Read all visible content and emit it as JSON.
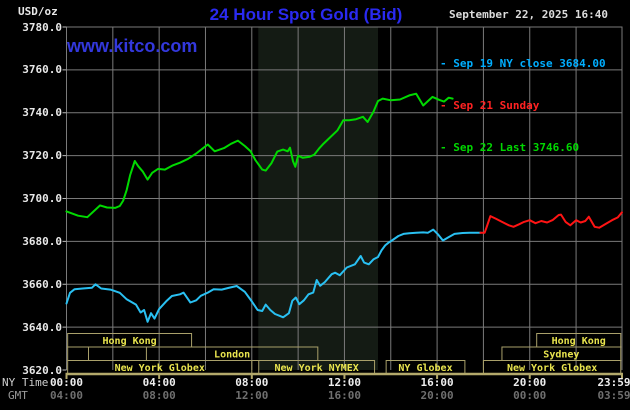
{
  "header": {
    "usd_oz": "USD/oz",
    "title": "24 Hour Spot Gold (Bid)",
    "date": "September 22, 2025 16:40",
    "watermark": "www.kitco.com"
  },
  "legend": [
    {
      "label": "- Sep 19 NY close 3684.00",
      "color": "#00aeff"
    },
    {
      "label": "- Sep 21 Sunday",
      "color": "#ff2222"
    },
    {
      "label": "- Sep 22 Last 3746.60",
      "color": "#00d800"
    }
  ],
  "axes": {
    "ny_time_label": "NY Time",
    "gmt_label": "GMT",
    "y_tick_labels": [
      "3780.0",
      "3760.0",
      "3740.0",
      "3720.0",
      "3700.0",
      "3680.0",
      "3660.0",
      "3640.0",
      "3620.0"
    ],
    "y_tick_values": [
      3780,
      3760,
      3740,
      3720,
      3700,
      3680,
      3660,
      3640,
      3620
    ],
    "x_tick_hours": [
      0,
      4,
      8,
      12,
      16,
      20,
      23.983
    ],
    "x_ny_time": [
      "00:00",
      "04:00",
      "08:00",
      "12:00",
      "16:00",
      "20:00",
      "23:59"
    ],
    "x_gmt": [
      "04:00",
      "08:00",
      "12:00",
      "16:00",
      "20:00",
      "00:00",
      "03:59"
    ]
  },
  "sessions": [
    {
      "row": 0,
      "start": 0.05,
      "end": 5.4,
      "label": "Hong Kong"
    },
    {
      "row": 0,
      "start": 20.3,
      "end": 23.93,
      "label": "Hong Kong"
    },
    {
      "row": 1,
      "start": 0.05,
      "end": 0.95,
      "label": ""
    },
    {
      "row": 1,
      "start": 3.45,
      "end": 10.85,
      "label": "London"
    },
    {
      "row": 1,
      "start": 18.8,
      "end": 23.93,
      "label": "Sydney"
    },
    {
      "row": 2,
      "start": 0.05,
      "end": 8.0,
      "label": "New York Globex"
    },
    {
      "row": 2,
      "start": 8.3,
      "end": 13.3,
      "label": "New York NYMEX"
    },
    {
      "row": 2,
      "start": 13.8,
      "end": 17.2,
      "label": "NY Globex"
    },
    {
      "row": 2,
      "start": 18.0,
      "end": 23.93,
      "label": "New York Globex"
    }
  ],
  "style": {
    "grid_color": "#7a7a7a",
    "band_color": "#141b14",
    "axis_tan": "#b3a96b",
    "session_border": "#a9a06a",
    "session_text": "#e9e44e",
    "tick_stub": "#bbbbbb"
  },
  "chart_data": {
    "type": "line",
    "title": "24 Hour Spot Gold (Bid)",
    "xlabel": "NY Time (hours)",
    "ylabel": "USD/oz",
    "xlim": [
      0,
      23.983
    ],
    "ylim": [
      3620,
      3780
    ],
    "grid": {
      "x_step_hours": 2,
      "y_step": 20
    },
    "nymex_band_hours": [
      8.28,
      13.45
    ],
    "legend_position": "top-right",
    "series": [
      {
        "name": "Sep 19 NY close 3684.00",
        "color": "#29c0f2",
        "points": [
          [
            0,
            3651
          ],
          [
            0.15,
            3656
          ],
          [
            0.35,
            3657.7
          ],
          [
            0.7,
            3658
          ],
          [
            1.1,
            3658.4
          ],
          [
            1.25,
            3660
          ],
          [
            1.5,
            3658
          ],
          [
            1.9,
            3657.5
          ],
          [
            2.3,
            3656
          ],
          [
            2.6,
            3653
          ],
          [
            3.0,
            3650.5
          ],
          [
            3.2,
            3646.8
          ],
          [
            3.35,
            3648
          ],
          [
            3.5,
            3642.5
          ],
          [
            3.65,
            3646.5
          ],
          [
            3.8,
            3644
          ],
          [
            4.0,
            3648.4
          ],
          [
            4.3,
            3652
          ],
          [
            4.55,
            3654.5
          ],
          [
            4.9,
            3655.3
          ],
          [
            5.05,
            3656.1
          ],
          [
            5.35,
            3651.5
          ],
          [
            5.6,
            3652.5
          ],
          [
            5.8,
            3654.6
          ],
          [
            6.1,
            3656.1
          ],
          [
            6.35,
            3657.7
          ],
          [
            6.7,
            3657.5
          ],
          [
            7.0,
            3658.3
          ],
          [
            7.35,
            3659.2
          ],
          [
            7.7,
            3656.5
          ],
          [
            8.0,
            3652
          ],
          [
            8.25,
            3648
          ],
          [
            8.45,
            3647.5
          ],
          [
            8.6,
            3650.5
          ],
          [
            8.8,
            3648
          ],
          [
            9.0,
            3646.1
          ],
          [
            9.2,
            3645.3
          ],
          [
            9.35,
            3644.6
          ],
          [
            9.6,
            3646.5
          ],
          [
            9.75,
            3652.3
          ],
          [
            9.9,
            3653.8
          ],
          [
            10.05,
            3650.7
          ],
          [
            10.25,
            3652.5
          ],
          [
            10.45,
            3655.3
          ],
          [
            10.65,
            3656.1
          ],
          [
            10.8,
            3662
          ],
          [
            10.95,
            3659.3
          ],
          [
            11.15,
            3661
          ],
          [
            11.45,
            3664.7
          ],
          [
            11.6,
            3665.4
          ],
          [
            11.8,
            3664.2
          ],
          [
            12.1,
            3667.8
          ],
          [
            12.45,
            3669.3
          ],
          [
            12.7,
            3673.2
          ],
          [
            12.85,
            3670.1
          ],
          [
            13.05,
            3669.3
          ],
          [
            13.25,
            3671.6
          ],
          [
            13.45,
            3672.7
          ],
          [
            13.6,
            3675.8
          ],
          [
            13.76,
            3678.1
          ],
          [
            13.9,
            3679.4
          ],
          [
            14.05,
            3680.4
          ],
          [
            14.33,
            3682.5
          ],
          [
            14.55,
            3683.5
          ],
          [
            14.8,
            3683.8
          ],
          [
            15.1,
            3684
          ],
          [
            15.4,
            3684.2
          ],
          [
            15.6,
            3684
          ],
          [
            15.83,
            3685.5
          ],
          [
            16.05,
            3683.1
          ],
          [
            16.25,
            3680.4
          ],
          [
            16.5,
            3682
          ],
          [
            16.75,
            3683.5
          ],
          [
            17.1,
            3683.9
          ],
          [
            17.4,
            3684
          ],
          [
            17.87,
            3684
          ]
        ]
      },
      {
        "name": "Sep 21 Sunday",
        "color": "#ff1414",
        "points": [
          [
            17.87,
            3684
          ],
          [
            18.05,
            3684
          ],
          [
            18.15,
            3687
          ],
          [
            18.3,
            3691.8
          ],
          [
            18.55,
            3690.5
          ],
          [
            18.8,
            3689.1
          ],
          [
            19.1,
            3687.5
          ],
          [
            19.3,
            3686.8
          ],
          [
            19.55,
            3688
          ],
          [
            19.75,
            3689.1
          ],
          [
            20.0,
            3689.9
          ],
          [
            20.25,
            3688.5
          ],
          [
            20.5,
            3689.5
          ],
          [
            20.75,
            3688.8
          ],
          [
            21.0,
            3690
          ],
          [
            21.25,
            3692.3
          ],
          [
            21.35,
            3692.5
          ],
          [
            21.55,
            3689.1
          ],
          [
            21.75,
            3687.5
          ],
          [
            22.0,
            3689.9
          ],
          [
            22.2,
            3688.8
          ],
          [
            22.4,
            3689.5
          ],
          [
            22.55,
            3691.5
          ],
          [
            22.8,
            3686.8
          ],
          [
            23.0,
            3686.4
          ],
          [
            23.3,
            3688.3
          ],
          [
            23.55,
            3689.9
          ],
          [
            23.8,
            3691.2
          ],
          [
            23.98,
            3693.5
          ]
        ]
      },
      {
        "name": "Sep 22 Last 3746.60",
        "color": "#00da00",
        "points": [
          [
            0,
            3694
          ],
          [
            0.5,
            3692
          ],
          [
            0.9,
            3691.3
          ],
          [
            1.45,
            3696.8
          ],
          [
            1.75,
            3695.8
          ],
          [
            2.1,
            3695.6
          ],
          [
            2.3,
            3696.5
          ],
          [
            2.45,
            3699
          ],
          [
            2.6,
            3704
          ],
          [
            2.75,
            3711
          ],
          [
            2.95,
            3717.5
          ],
          [
            3.1,
            3715
          ],
          [
            3.3,
            3712.5
          ],
          [
            3.5,
            3708.8
          ],
          [
            3.7,
            3712
          ],
          [
            3.95,
            3713.8
          ],
          [
            4.25,
            3713.5
          ],
          [
            4.6,
            3715.5
          ],
          [
            4.9,
            3716.7
          ],
          [
            5.25,
            3718.5
          ],
          [
            5.6,
            3721
          ],
          [
            5.9,
            3723.5
          ],
          [
            6.1,
            3725.2
          ],
          [
            6.4,
            3722
          ],
          [
            6.8,
            3723.5
          ],
          [
            7.1,
            3725.5
          ],
          [
            7.4,
            3727
          ],
          [
            7.7,
            3724.5
          ],
          [
            7.95,
            3722
          ],
          [
            8.15,
            3718
          ],
          [
            8.45,
            3713.5
          ],
          [
            8.6,
            3713
          ],
          [
            8.85,
            3716.5
          ],
          [
            9.1,
            3721.9
          ],
          [
            9.35,
            3722.8
          ],
          [
            9.55,
            3722
          ],
          [
            9.65,
            3723.7
          ],
          [
            9.78,
            3717.4
          ],
          [
            9.88,
            3714.8
          ],
          [
            10.0,
            3720
          ],
          [
            10.2,
            3719
          ],
          [
            10.5,
            3719.5
          ],
          [
            10.7,
            3720.5
          ],
          [
            10.9,
            3723.3
          ],
          [
            11.1,
            3725.6
          ],
          [
            11.4,
            3728.7
          ],
          [
            11.7,
            3731.8
          ],
          [
            11.95,
            3736.5
          ],
          [
            12.2,
            3736.5
          ],
          [
            12.5,
            3737
          ],
          [
            12.8,
            3738.1
          ],
          [
            13.0,
            3735.7
          ],
          [
            13.25,
            3740.4
          ],
          [
            13.45,
            3745.5
          ],
          [
            13.65,
            3746.6
          ],
          [
            14.0,
            3745.8
          ],
          [
            14.4,
            3746.2
          ],
          [
            14.8,
            3748.1
          ],
          [
            15.1,
            3748.9
          ],
          [
            15.4,
            3743.4
          ],
          [
            15.8,
            3747.4
          ],
          [
            16.1,
            3746
          ],
          [
            16.3,
            3745.2
          ],
          [
            16.5,
            3747
          ],
          [
            16.67,
            3746.6
          ]
        ]
      }
    ]
  }
}
